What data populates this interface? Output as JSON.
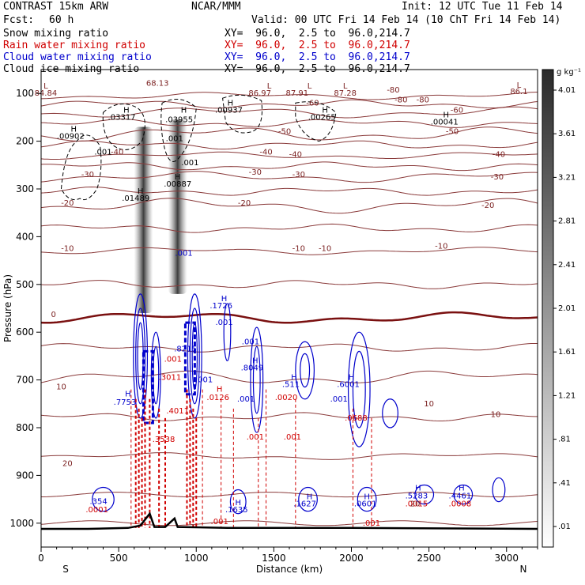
{
  "header": {
    "model": "CONTRAST 15km ARW",
    "org": "NCAR/MMM",
    "init": "Init: 12 UTC Tue 11 Feb 14",
    "fcst_label": "Fcst:",
    "fcst_value": "60 h",
    "valid": "Valid: 00 UTC Fri 14 Feb 14 (10 ChT Fri 14 Feb 14)"
  },
  "fields": [
    {
      "name": "Snow mixing ratio",
      "xy": "XY=  96.0,  2.5 to  96.0,214.7",
      "color": "#000000"
    },
    {
      "name": "Rain water mixing ratio",
      "xy": "XY=  96.0,  2.5 to  96.0,214.7",
      "color": "#d00000"
    },
    {
      "name": "Cloud water mixing ratio",
      "xy": "XY=  96.0,  2.5 to  96.0,214.7",
      "color": "#0000cc"
    },
    {
      "name": "Cloud ice mixing ratio",
      "xy": "XY=  96.0,  2.5 to  96.0,214.7",
      "color": "#000000"
    }
  ],
  "chart_data": {
    "type": "heatmap",
    "xlabel": "Distance (km)",
    "ylabel": "Pressure (hPa)",
    "xlim": [
      0,
      3200
    ],
    "ylim": [
      1050,
      50
    ],
    "x_ticks": [
      0,
      500,
      1000,
      1500,
      2000,
      2500,
      3000
    ],
    "y_ticks": [
      100,
      200,
      300,
      400,
      500,
      600,
      700,
      800,
      900,
      1000
    ],
    "x_end_labels": {
      "left": "S",
      "right": "N"
    },
    "colorbar": {
      "unit": "g kg⁻¹",
      "ticks": [
        ".01",
        ".41",
        ".81",
        "1.21",
        "1.61",
        "2.01",
        "2.41",
        "2.81",
        "3.21",
        "3.61",
        "4.01"
      ]
    },
    "temperature_contours": [
      {
        "value": -80,
        "pressure": 105
      },
      {
        "value": -60,
        "pressure": 140
      },
      {
        "value": -50,
        "pressure": 185
      },
      {
        "value": -40,
        "pressure": 230
      },
      {
        "value": -30,
        "pressure": 275
      },
      {
        "value": -20,
        "pressure": 335
      },
      {
        "value": -10,
        "pressure": 430
      },
      {
        "value": 0,
        "pressure": 570
      },
      {
        "value": 10,
        "pressure": 695
      },
      {
        "value": 20,
        "pressure": 860
      }
    ],
    "snow_columns": [
      {
        "x_km": 660,
        "p_top": 170,
        "p_bottom": 560
      },
      {
        "x_km": 880,
        "p_top": 155,
        "p_bottom": 520
      }
    ],
    "labels": [
      {
        "text": "L",
        "x_km": 30,
        "p": 90,
        "color": "#7a1f1f"
      },
      {
        "text": "84.84",
        "x_km": 30,
        "p": 105,
        "color": "#7a1f1f"
      },
      {
        "text": "68.13",
        "x_km": 750,
        "p": 84,
        "color": "#7a1f1f"
      },
      {
        "text": "L",
        "x_km": 1470,
        "p": 90,
        "color": "#7a1f1f"
      },
      {
        "text": "86.97",
        "x_km": 1410,
        "p": 105,
        "color": "#7a1f1f"
      },
      {
        "text": "L",
        "x_km": 1730,
        "p": 90,
        "color": "#7a1f1f"
      },
      {
        "text": "87.91",
        "x_km": 1650,
        "p": 105,
        "color": "#7a1f1f"
      },
      {
        "text": "L",
        "x_km": 1960,
        "p": 90,
        "color": "#7a1f1f"
      },
      {
        "text": "87.28",
        "x_km": 1960,
        "p": 105,
        "color": "#7a1f1f"
      },
      {
        "text": "L",
        "x_km": 3080,
        "p": 88,
        "color": "#7a1f1f"
      },
      {
        "text": "86.1",
        "x_km": 3080,
        "p": 101,
        "color": "#7a1f1f"
      },
      {
        "text": "H",
        "x_km": 550,
        "p": 140,
        "color": "#000000"
      },
      {
        "text": ".03317",
        "x_km": 520,
        "p": 155,
        "color": "#000000"
      },
      {
        "text": "H",
        "x_km": 920,
        "p": 140,
        "color": "#000000"
      },
      {
        "text": ".03955",
        "x_km": 890,
        "p": 160,
        "color": "#000000"
      },
      {
        "text": "H",
        "x_km": 1220,
        "p": 125,
        "color": "#000000"
      },
      {
        "text": ".00937",
        "x_km": 1210,
        "p": 140,
        "color": "#000000"
      },
      {
        "text": "H",
        "x_km": 1830,
        "p": 140,
        "color": "#000000"
      },
      {
        "text": ".00265",
        "x_km": 1810,
        "p": 155,
        "color": "#000000"
      },
      {
        "text": "H",
        "x_km": 2610,
        "p": 150,
        "color": "#000000"
      },
      {
        "text": ".00041",
        "x_km": 2600,
        "p": 165,
        "color": "#000000"
      },
      {
        "text": "H",
        "x_km": 210,
        "p": 180,
        "color": "#000000"
      },
      {
        "text": ".00902",
        "x_km": 190,
        "p": 195,
        "color": "#000000"
      },
      {
        "text": "H",
        "x_km": 880,
        "p": 280,
        "color": "#000000"
      },
      {
        "text": ".00887",
        "x_km": 880,
        "p": 295,
        "color": "#000000"
      },
      {
        "text": "H",
        "x_km": 640,
        "p": 310,
        "color": "#000000"
      },
      {
        "text": ".01489",
        "x_km": 610,
        "p": 325,
        "color": "#000000"
      },
      {
        "text": ".001",
        "x_km": 400,
        "p": 228,
        "color": "#000000"
      },
      {
        "text": ".001",
        "x_km": 860,
        "p": 200,
        "color": "#000000"
      },
      {
        "text": ".001",
        "x_km": 960,
        "p": 250,
        "color": "#000000"
      },
      {
        "text": "H",
        "x_km": 1180,
        "p": 535,
        "color": "#0000cc"
      },
      {
        "text": ".1726",
        "x_km": 1160,
        "p": 550,
        "color": "#0000cc"
      },
      {
        "text": ".001",
        "x_km": 920,
        "p": 440,
        "color": "#0000cc"
      },
      {
        "text": ".001",
        "x_km": 1180,
        "p": 585,
        "color": "#0000cc"
      },
      {
        "text": ".001",
        "x_km": 1350,
        "p": 625,
        "color": "#0000cc"
      },
      {
        "text": "H",
        "x_km": 1380,
        "p": 665,
        "color": "#0000cc"
      },
      {
        "text": ".8049",
        "x_km": 1360,
        "p": 680,
        "color": "#0000cc"
      },
      {
        "text": ".8215",
        "x_km": 930,
        "p": 640,
        "color": "#0000cc"
      },
      {
        "text": ".001",
        "x_km": 1320,
        "p": 745,
        "color": "#0000cc"
      },
      {
        "text": "H",
        "x_km": 1630,
        "p": 700,
        "color": "#0000cc"
      },
      {
        "text": ".511",
        "x_km": 1610,
        "p": 715,
        "color": "#0000cc"
      },
      {
        "text": "H",
        "x_km": 2000,
        "p": 700,
        "color": "#0000cc"
      },
      {
        "text": ".6001",
        "x_km": 1980,
        "p": 715,
        "color": "#0000cc"
      },
      {
        "text": ".001",
        "x_km": 1050,
        "p": 705,
        "color": "#0000cc"
      },
      {
        "text": "H",
        "x_km": 560,
        "p": 735,
        "color": "#0000cc"
      },
      {
        "text": ".7753",
        "x_km": 540,
        "p": 752,
        "color": "#0000cc"
      },
      {
        "text": ".001",
        "x_km": 1920,
        "p": 745,
        "color": "#0000cc"
      },
      {
        "text": "H",
        "x_km": 2430,
        "p": 932,
        "color": "#0000cc"
      },
      {
        "text": ".5283",
        "x_km": 2420,
        "p": 948,
        "color": "#0000cc"
      },
      {
        "text": "H",
        "x_km": 2710,
        "p": 932,
        "color": "#0000cc"
      },
      {
        "text": ".4461",
        "x_km": 2700,
        "p": 948,
        "color": "#0000cc"
      },
      {
        "text": "H",
        "x_km": 1730,
        "p": 950,
        "color": "#0000cc"
      },
      {
        "text": ".1627",
        "x_km": 1700,
        "p": 965,
        "color": "#0000cc"
      },
      {
        "text": "H",
        "x_km": 2100,
        "p": 950,
        "color": "#0000cc"
      },
      {
        "text": ".0601",
        "x_km": 2090,
        "p": 965,
        "color": "#0000cc"
      },
      {
        "text": "H",
        "x_km": 1270,
        "p": 962,
        "color": "#0000cc"
      },
      {
        "text": ".1635",
        "x_km": 1260,
        "p": 977,
        "color": "#0000cc"
      },
      {
        "text": ".354",
        "x_km": 370,
        "p": 960,
        "color": "#0000cc"
      },
      {
        "text": ".0001",
        "x_km": 360,
        "p": 977,
        "color": "#d00000"
      },
      {
        "text": ".001",
        "x_km": 850,
        "p": 662,
        "color": "#d00000"
      },
      {
        "text": ".3011",
        "x_km": 830,
        "p": 700,
        "color": "#d00000"
      },
      {
        "text": ".4011",
        "x_km": 880,
        "p": 770,
        "color": "#d00000"
      },
      {
        "text": ".3538",
        "x_km": 790,
        "p": 830,
        "color": "#d00000"
      },
      {
        "text": "H",
        "x_km": 1150,
        "p": 725,
        "color": "#d00000"
      },
      {
        "text": ".0126",
        "x_km": 1140,
        "p": 742,
        "color": "#d00000"
      },
      {
        "text": ".0020",
        "x_km": 1580,
        "p": 742,
        "color": "#d00000"
      },
      {
        "text": ".0688",
        "x_km": 2030,
        "p": 785,
        "color": "#d00000"
      },
      {
        "text": ".001",
        "x_km": 1380,
        "p": 825,
        "color": "#d00000"
      },
      {
        "text": ".001",
        "x_km": 1620,
        "p": 825,
        "color": "#d00000"
      },
      {
        "text": ".0015",
        "x_km": 2420,
        "p": 965,
        "color": "#d00000"
      },
      {
        "text": ".0008",
        "x_km": 2700,
        "p": 965,
        "color": "#d00000"
      },
      {
        "text": ".001",
        "x_km": 1150,
        "p": 1002,
        "color": "#d00000"
      },
      {
        "text": ".001",
        "x_km": 2130,
        "p": 1005,
        "color": "#d00000"
      },
      {
        "text": "-80",
        "x_km": 2270,
        "p": 98,
        "color": "#7a1f1f"
      },
      {
        "text": "-80",
        "x_km": 2320,
        "p": 119,
        "color": "#7a1f1f"
      },
      {
        "text": "-80",
        "x_km": 2460,
        "p": 119,
        "color": "#7a1f1f"
      },
      {
        "text": "-60",
        "x_km": 1750,
        "p": 125,
        "color": "#7a1f1f"
      },
      {
        "text": "-60",
        "x_km": 2680,
        "p": 140,
        "color": "#7a1f1f"
      },
      {
        "text": "-50",
        "x_km": 1570,
        "p": 185,
        "color": "#7a1f1f"
      },
      {
        "text": "-50",
        "x_km": 2650,
        "p": 185,
        "color": "#7a1f1f"
      },
      {
        "text": "-40",
        "x_km": 490,
        "p": 228,
        "color": "#7a1f1f"
      },
      {
        "text": "-40",
        "x_km": 1450,
        "p": 228,
        "color": "#7a1f1f"
      },
      {
        "text": "-40",
        "x_km": 1640,
        "p": 233,
        "color": "#7a1f1f"
      },
      {
        "text": "-40",
        "x_km": 2950,
        "p": 233,
        "color": "#7a1f1f"
      },
      {
        "text": "-30",
        "x_km": 300,
        "p": 275,
        "color": "#7a1f1f"
      },
      {
        "text": "-30",
        "x_km": 1380,
        "p": 270,
        "color": "#7a1f1f"
      },
      {
        "text": "-30",
        "x_km": 1660,
        "p": 275,
        "color": "#7a1f1f"
      },
      {
        "text": "-30",
        "x_km": 2940,
        "p": 280,
        "color": "#7a1f1f"
      },
      {
        "text": "-20",
        "x_km": 170,
        "p": 335,
        "color": "#7a1f1f"
      },
      {
        "text": "-20",
        "x_km": 1310,
        "p": 335,
        "color": "#7a1f1f"
      },
      {
        "text": "-20",
        "x_km": 2880,
        "p": 340,
        "color": "#7a1f1f"
      },
      {
        "text": "-10",
        "x_km": 170,
        "p": 430,
        "color": "#7a1f1f"
      },
      {
        "text": "-10",
        "x_km": 1660,
        "p": 430,
        "color": "#7a1f1f"
      },
      {
        "text": "-10",
        "x_km": 1830,
        "p": 430,
        "color": "#7a1f1f"
      },
      {
        "text": "-10",
        "x_km": 2580,
        "p": 425,
        "color": "#7a1f1f"
      },
      {
        "text": "0",
        "x_km": 80,
        "p": 568,
        "color": "#7a1f1f"
      },
      {
        "text": "10",
        "x_km": 130,
        "p": 720,
        "color": "#7a1f1f"
      },
      {
        "text": "10",
        "x_km": 2500,
        "p": 755,
        "color": "#7a1f1f"
      },
      {
        "text": "10",
        "x_km": 2930,
        "p": 778,
        "color": "#7a1f1f"
      },
      {
        "text": "20",
        "x_km": 170,
        "p": 880,
        "color": "#7a1f1f"
      },
      {
        "text": "20",
        "x_km": 2410,
        "p": 965,
        "color": "#7a1f1f"
      }
    ]
  }
}
